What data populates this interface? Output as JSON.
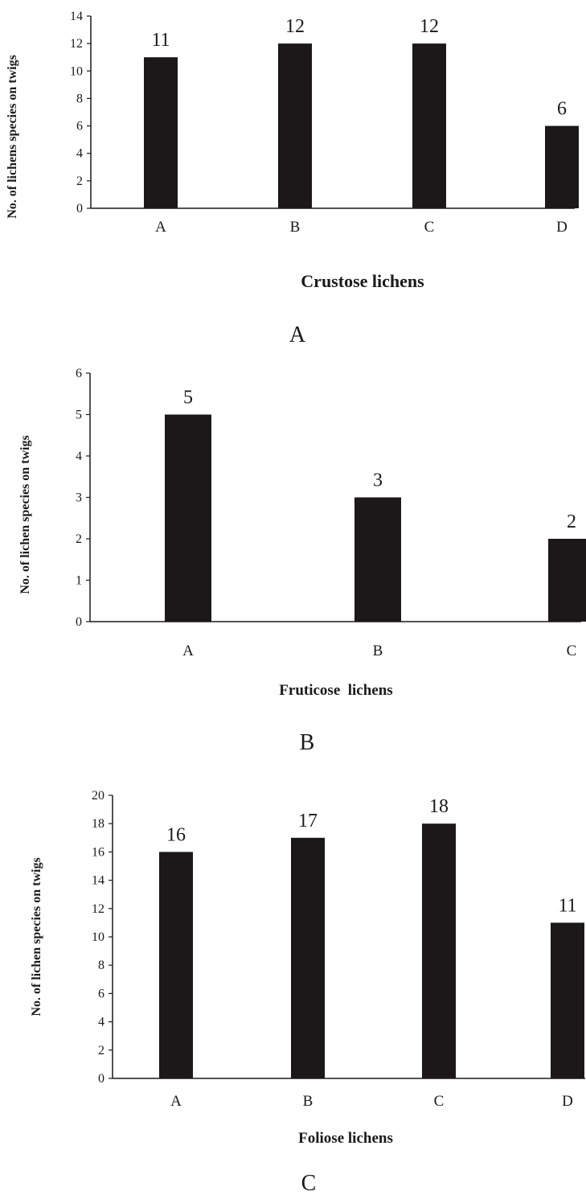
{
  "chart_data": [
    {
      "type": "bar",
      "panel_label": "A",
      "categories": [
        "A",
        "B",
        "C",
        "D"
      ],
      "values": [
        11,
        12,
        12,
        6
      ],
      "data_labels": [
        "11",
        "12",
        "12",
        "6"
      ],
      "title": "",
      "xlabel": "Crustose lichens",
      "ylabel": "No. of lichens species on twigs",
      "ylim": [
        0,
        14
      ],
      "yticks": [
        "0",
        "2",
        "4",
        "6",
        "8",
        "10",
        "12",
        "14"
      ],
      "grid": false,
      "bar_color": "#1c1718"
    },
    {
      "type": "bar",
      "panel_label": "B",
      "categories": [
        "A",
        "B",
        "C"
      ],
      "values": [
        5,
        3,
        2
      ],
      "data_labels": [
        "5",
        "3",
        "2"
      ],
      "title": "",
      "xlabel": "Fruticose  lichens",
      "ylabel": "No. of lichen species on twigs",
      "ylim": [
        0,
        6
      ],
      "yticks": [
        "0",
        "1",
        "2",
        "3",
        "4",
        "5",
        "6"
      ],
      "grid": false,
      "bar_color": "#1c1718"
    },
    {
      "type": "bar",
      "panel_label": "C",
      "categories": [
        "A",
        "B",
        "C",
        "D"
      ],
      "values": [
        16,
        17,
        18,
        11
      ],
      "data_labels": [
        "16",
        "17",
        "18",
        "11"
      ],
      "title": "",
      "xlabel": "Foliose lichens",
      "ylabel": "No. of lichen species on twigs",
      "ylim": [
        0,
        20
      ],
      "yticks": [
        "0",
        "2",
        "4",
        "6",
        "8",
        "10",
        "12",
        "14",
        "16",
        "18",
        "20"
      ],
      "grid": false,
      "bar_color": "#1c1718"
    }
  ]
}
